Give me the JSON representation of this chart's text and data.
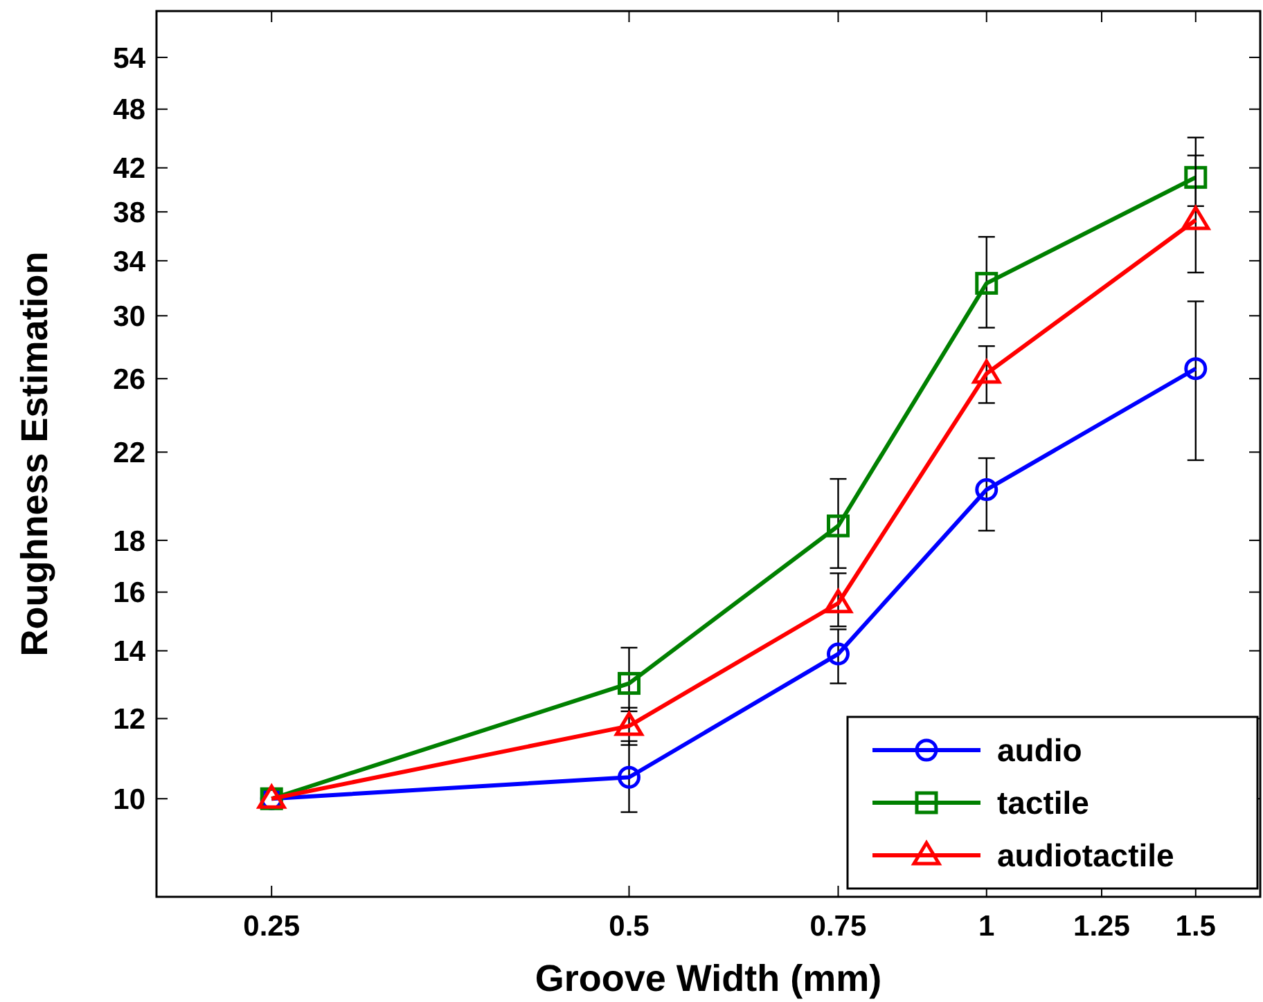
{
  "chart_data": {
    "type": "line",
    "xlabel": "Groove Width (mm)",
    "ylabel": "Roughness Estimation",
    "log": "xy",
    "x": [
      0.25,
      0.5,
      0.75,
      1,
      1.5
    ],
    "xlim": [
      0.2,
      1.7
    ],
    "xticks": [
      0.25,
      0.5,
      0.75,
      1,
      1.25,
      1.5
    ],
    "ylim": [
      8,
      60
    ],
    "yticks": [
      10,
      12,
      14,
      16,
      18,
      22,
      26,
      30,
      34,
      38,
      42,
      48,
      54
    ],
    "grid": false,
    "legend": "bottom right",
    "series": [
      {
        "name": "audio",
        "color": "#0000ff",
        "marker": "circle",
        "values": [
          10,
          10.5,
          13.9,
          20.2,
          26.6
        ],
        "errors": [
          null,
          [
            9.7,
            11.4
          ],
          [
            13.0,
            14.7
          ],
          [
            18.4,
            21.7
          ],
          [
            21.6,
            31.0
          ]
        ]
      },
      {
        "name": "tactile",
        "color": "#008000",
        "marker": "square",
        "values": [
          10,
          13.0,
          18.6,
          32.3,
          41.1
        ],
        "errors": [
          null,
          [
            12.2,
            14.1
          ],
          [
            16.9,
            20.7
          ],
          [
            29.2,
            35.9
          ],
          [
            38.5,
            45.0
          ]
        ]
      },
      {
        "name": "audiotactile",
        "color": "#ff0000",
        "marker": "triangle",
        "values": [
          10,
          11.8,
          15.6,
          26.3,
          37.3
        ],
        "errors": [
          null,
          [
            11.3,
            12.3
          ],
          [
            14.8,
            16.7
          ],
          [
            24.6,
            28.0
          ],
          [
            33.1,
            43.2
          ]
        ]
      }
    ]
  }
}
